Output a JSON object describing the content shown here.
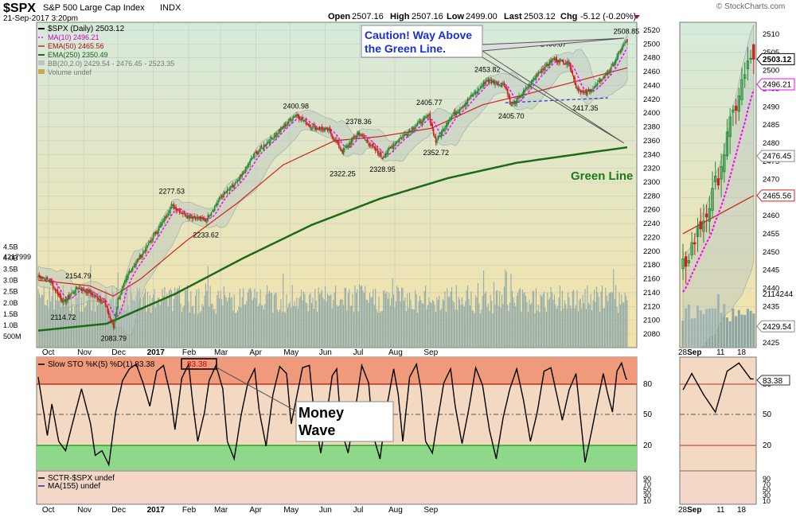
{
  "header": {
    "symbol": "$SPX",
    "name": "S&P 500 Large Cap Index",
    "exchange": "INDX",
    "date": "21-Sep-2017 3:20pm",
    "open_label": "Open",
    "open": "2507.16",
    "high_label": "High",
    "high": "2507.16",
    "low_label": "Low",
    "low": "2499.00",
    "last_label": "Last",
    "last": "2503.12",
    "chg_label": "Chg",
    "chg": "-5.12 (-0.20%)",
    "watermark": "© StockCharts.com"
  },
  "legend": {
    "price": "$SPX (Daily) 2503.12",
    "ma10": "MA(10) 2496.21",
    "ema50": "EMA(50) 2465.56",
    "ema250": "EMA(250) 2350.49",
    "bb": "BB(20,2.0) 2429.54 - 2476.45 - 2523.35",
    "volume": "Volume undef"
  },
  "annotations": {
    "caution_line1": "Caution! Way Above",
    "caution_line2": "the Green Line.",
    "green_line": "Green Line",
    "money_line1": "Money",
    "money_line2": "Wave"
  },
  "price_labels": [
    {
      "text": "2114.72",
      "d": 22,
      "v": 2114.72,
      "pos": "below"
    },
    {
      "text": "2154.79",
      "d": 35,
      "v": 2154.79,
      "pos": "above"
    },
    {
      "text": "2083.79",
      "d": 66,
      "v": 2083.79,
      "pos": "below"
    },
    {
      "text": "2277.53",
      "d": 117,
      "v": 2277.53,
      "pos": "above"
    },
    {
      "text": "2233.62",
      "d": 147,
      "v": 2233.62,
      "pos": "below"
    },
    {
      "text": "2400.98",
      "d": 226,
      "v": 2400.98,
      "pos": "above"
    },
    {
      "text": "2322.25",
      "d": 267,
      "v": 2322.25,
      "pos": "below"
    },
    {
      "text": "2378.36",
      "d": 281,
      "v": 2378.36,
      "pos": "above"
    },
    {
      "text": "2328.95",
      "d": 302,
      "v": 2328.95,
      "pos": "below"
    },
    {
      "text": "2405.77",
      "d": 343,
      "v": 2405.77,
      "pos": "above"
    },
    {
      "text": "2352.72",
      "d": 349,
      "v": 2352.72,
      "pos": "below"
    },
    {
      "text": "2453.82",
      "d": 394,
      "v": 2453.82,
      "pos": "above"
    },
    {
      "text": "2405.70",
      "d": 415,
      "v": 2405.7,
      "pos": "below"
    },
    {
      "text": "2490.87",
      "d": 452,
      "v": 2490.87,
      "pos": "above"
    },
    {
      "text": "2417.35",
      "d": 480,
      "v": 2417.35,
      "pos": "below"
    },
    {
      "text": "2508.85",
      "d": 516,
      "v": 2508.85,
      "pos": "above"
    }
  ],
  "x_axis": {
    "labels": [
      {
        "text": "Oct",
        "d": 9
      },
      {
        "text": "Nov",
        "d": 40
      },
      {
        "text": "Dec",
        "d": 70
      },
      {
        "text": "2017",
        "d": 101,
        "bold": true
      },
      {
        "text": "Feb",
        "d": 132
      },
      {
        "text": "Mar",
        "d": 160
      },
      {
        "text": "Apr",
        "d": 191
      },
      {
        "text": "May",
        "d": 221
      },
      {
        "text": "Jun",
        "d": 252
      },
      {
        "text": "Jul",
        "d": 282
      },
      {
        "text": "Aug",
        "d": 313
      },
      {
        "text": "Sep",
        "d": 344
      }
    ],
    "zoom_labels": [
      {
        "text": "28",
        "d": -3
      },
      {
        "text": "Sep",
        "d": 0,
        "bold": true
      },
      {
        "text": "11",
        "d": 10
      },
      {
        "text": "18",
        "d": 17
      }
    ]
  },
  "volume_axis": {
    "labels": [
      "4.5B",
      "4.0B",
      "3.5B",
      "3.0B",
      "2.5B",
      "2.0B",
      "1.5B",
      "1.0B",
      "500M"
    ],
    "values": [
      4.5,
      4.0,
      3.5,
      3.0,
      2.5,
      2.0,
      1.5,
      1.0,
      0.5
    ]
  },
  "volume_value_label": "4217999",
  "zoom_axis": {
    "ticks": [
      2510,
      2505,
      2500,
      2495,
      2490,
      2485,
      2480,
      2475,
      2470,
      2465,
      2460,
      2455,
      2450,
      2445,
      2440,
      2435,
      2430,
      2425
    ],
    "tags": [
      {
        "text": "2503.12",
        "v": 2503.12,
        "style": "last"
      },
      {
        "text": "2496.21",
        "v": 2496.21,
        "style": "ma10"
      },
      {
        "text": "2476.45",
        "v": 2476.45,
        "style": "bb"
      },
      {
        "text": "2465.56",
        "v": 2465.56,
        "style": "ema50"
      },
      {
        "text": "2429.54",
        "v": 2429.54,
        "style": "bb"
      },
      {
        "text": "2114244",
        "v": 2438.5,
        "style": "plain"
      }
    ]
  },
  "stoch": {
    "legend": "Slow STO %K(5) %D(1) 83.38",
    "value_box": "83.38",
    "value_tag": "83.38",
    "ticks": [
      "80",
      "50",
      "20"
    ]
  },
  "sctr": {
    "legend1": "SCTR-$SPX undef",
    "legend2": "MA(155) undef",
    "ticks": [
      "90",
      "70",
      "50",
      "30",
      "10"
    ]
  },
  "colors": {
    "price_bg_top": "#d6eadb",
    "price_bg_bottom": "#f3e2a8",
    "candle_up": "#1f8a2e",
    "candle_down": "#d11e1e",
    "ma10": "#ff00ff",
    "ema50": "#cc2222",
    "ema250": "#1b6b1b",
    "bb_fill": "#b8c6c2",
    "volume": "#8aa6a8",
    "overbought": "#ef9a7a",
    "oversold": "#8ed88a",
    "stoch_bg": "#f3d9c1",
    "sctr_bg": "#f3d6c6",
    "annotation_text": "#1b2fd1",
    "green_text": "#1b7a1b"
  },
  "chart_data": [
    {
      "type": "candlestick",
      "title": "$SPX S&P 500 Large Cap Index",
      "x_range": [
        "2016-09-21",
        "2017-09-21"
      ],
      "ylim": [
        2070,
        2525
      ],
      "y_ticks": [
        2520,
        2500,
        2480,
        2460,
        2440,
        2420,
        2400,
        2380,
        2360,
        2340,
        2320,
        2300,
        2280,
        2260,
        2240,
        2220,
        2200,
        2180,
        2160,
        2140,
        2120,
        2100,
        2080
      ],
      "close_keypoints": [
        [
          0,
          2164
        ],
        [
          10,
          2158
        ],
        [
          22,
          2126
        ],
        [
          35,
          2148
        ],
        [
          45,
          2140
        ],
        [
          58,
          2126
        ],
        [
          66,
          2090
        ],
        [
          70,
          2130
        ],
        [
          80,
          2170
        ],
        [
          95,
          2205
        ],
        [
          110,
          2245
        ],
        [
          117,
          2266
        ],
        [
          130,
          2252
        ],
        [
          147,
          2245
        ],
        [
          160,
          2278
        ],
        [
          175,
          2300
        ],
        [
          190,
          2340
        ],
        [
          210,
          2372
        ],
        [
          226,
          2398
        ],
        [
          240,
          2380
        ],
        [
          255,
          2375
        ],
        [
          267,
          2344
        ],
        [
          281,
          2372
        ],
        [
          295,
          2348
        ],
        [
          302,
          2336
        ],
        [
          315,
          2360
        ],
        [
          330,
          2380
        ],
        [
          343,
          2396
        ],
        [
          349,
          2358
        ],
        [
          360,
          2390
        ],
        [
          378,
          2420
        ],
        [
          394,
          2448
        ],
        [
          410,
          2440
        ],
        [
          415,
          2410
        ],
        [
          425,
          2428
        ],
        [
          440,
          2460
        ],
        [
          452,
          2478
        ],
        [
          466,
          2472
        ],
        [
          472,
          2438
        ],
        [
          480,
          2428
        ],
        [
          490,
          2440
        ],
        [
          503,
          2465
        ],
        [
          512,
          2494
        ],
        [
          516,
          2503
        ],
        [
          517,
          2503
        ]
      ],
      "series": [
        {
          "name": "MA(10)",
          "last": 2496.21
        },
        {
          "name": "EMA(50)",
          "last": 2465.56,
          "keypoints": [
            [
              0,
              2158
            ],
            [
              45,
              2150
            ],
            [
              66,
              2135
            ],
            [
              90,
              2160
            ],
            [
              130,
              2215
            ],
            [
              175,
              2270
            ],
            [
              215,
              2325
            ],
            [
              260,
              2360
            ],
            [
              300,
              2366
            ],
            [
              345,
              2378
            ],
            [
              390,
              2412
            ],
            [
              430,
              2428
            ],
            [
              470,
              2445
            ],
            [
              517,
              2465.56
            ]
          ]
        },
        {
          "name": "EMA(250)",
          "last": 2350.49,
          "keypoints": [
            [
              0,
              2085
            ],
            [
              60,
              2095
            ],
            [
              120,
              2138
            ],
            [
              180,
              2190
            ],
            [
              240,
              2238
            ],
            [
              300,
              2276
            ],
            [
              360,
              2306
            ],
            [
              420,
              2328
            ],
            [
              480,
              2342
            ],
            [
              517,
              2350.49
            ]
          ]
        },
        {
          "name": "BB(20,2.0)",
          "values": [
            2429.54,
            2476.45,
            2523.35
          ]
        }
      ],
      "trendline": [
        [
          410,
          2415
        ],
        [
          500,
          2422
        ]
      ]
    },
    {
      "type": "bar",
      "title": "Volume",
      "ylabel": "Volume",
      "ylim": [
        0,
        4.8
      ],
      "units": "B",
      "typical_range": [
        1.5,
        2.8
      ],
      "last": 2.114244
    },
    {
      "type": "line",
      "title": "Slow STO %K(5) %D(1)",
      "ylim": [
        0,
        100
      ],
      "reference_lines": [
        80,
        50,
        20
      ],
      "last": 83.38,
      "keypoints": [
        [
          0,
          85
        ],
        [
          4,
          60
        ],
        [
          8,
          35
        ],
        [
          12,
          62
        ],
        [
          18,
          30
        ],
        [
          24,
          22
        ],
        [
          30,
          45
        ],
        [
          38,
          75
        ],
        [
          46,
          45
        ],
        [
          50,
          18
        ],
        [
          56,
          22
        ],
        [
          62,
          10
        ],
        [
          68,
          55
        ],
        [
          74,
          82
        ],
        [
          80,
          92
        ],
        [
          86,
          96
        ],
        [
          92,
          80
        ],
        [
          98,
          60
        ],
        [
          104,
          90
        ],
        [
          110,
          95
        ],
        [
          116,
          70
        ],
        [
          120,
          40
        ],
        [
          126,
          84
        ],
        [
          132,
          96
        ],
        [
          136,
          60
        ],
        [
          140,
          30
        ],
        [
          146,
          55
        ],
        [
          150,
          82
        ],
        [
          156,
          95
        ],
        [
          162,
          75
        ],
        [
          166,
          30
        ],
        [
          172,
          15
        ],
        [
          178,
          52
        ],
        [
          184,
          80
        ],
        [
          190,
          92
        ],
        [
          194,
          56
        ],
        [
          200,
          26
        ],
        [
          206,
          70
        ],
        [
          212,
          94
        ],
        [
          218,
          88
        ],
        [
          222,
          45
        ],
        [
          226,
          64
        ],
        [
          232,
          93
        ],
        [
          238,
          95
        ],
        [
          242,
          55
        ],
        [
          248,
          20
        ],
        [
          252,
          44
        ],
        [
          258,
          86
        ],
        [
          262,
          92
        ],
        [
          266,
          40
        ],
        [
          272,
          20
        ],
        [
          278,
          55
        ],
        [
          284,
          95
        ],
        [
          290,
          80
        ],
        [
          294,
          35
        ],
        [
          300,
          15
        ],
        [
          306,
          60
        ],
        [
          312,
          92
        ],
        [
          316,
          70
        ],
        [
          320,
          30
        ],
        [
          326,
          85
        ],
        [
          332,
          96
        ],
        [
          336,
          74
        ],
        [
          340,
          30
        ],
        [
          346,
          20
        ],
        [
          350,
          45
        ],
        [
          356,
          80
        ],
        [
          362,
          92
        ],
        [
          366,
          60
        ],
        [
          372,
          28
        ],
        [
          378,
          58
        ],
        [
          384,
          93
        ],
        [
          390,
          78
        ],
        [
          396,
          40
        ],
        [
          402,
          15
        ],
        [
          408,
          50
        ],
        [
          414,
          75
        ],
        [
          420,
          92
        ],
        [
          426,
          65
        ],
        [
          432,
          30
        ],
        [
          438,
          55
        ],
        [
          444,
          90
        ],
        [
          450,
          93
        ],
        [
          456,
          66
        ],
        [
          460,
          48
        ],
        [
          466,
          74
        ],
        [
          472,
          88
        ],
        [
          476,
          50
        ],
        [
          480,
          12
        ],
        [
          486,
          40
        ],
        [
          490,
          60
        ],
        [
          496,
          88
        ],
        [
          500,
          70
        ],
        [
          504,
          55
        ],
        [
          508,
          90
        ],
        [
          512,
          97
        ],
        [
          516,
          83.38
        ]
      ]
    },
    {
      "type": "line",
      "title": "SCTR-$SPX",
      "ylim": [
        0,
        100
      ],
      "ticks": [
        90,
        70,
        50,
        30,
        10
      ],
      "series": [
        {
          "name": "SCTR-$SPX",
          "values": []
        },
        {
          "name": "MA(155)",
          "values": []
        }
      ]
    }
  ]
}
